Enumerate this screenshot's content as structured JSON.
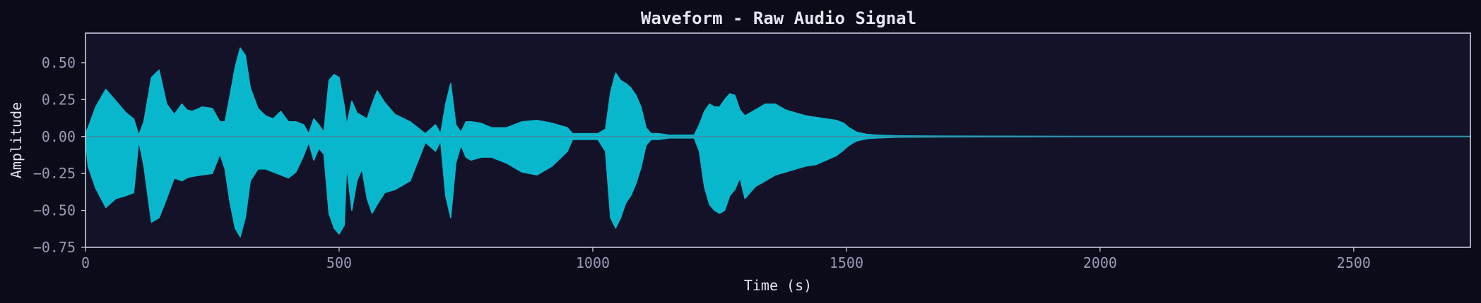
{
  "chart_data": {
    "type": "area",
    "title": "Waveform - Raw Audio Signal",
    "xlabel": "Time (s)",
    "ylabel": "Amplitude",
    "xlim": [
      0,
      2730
    ],
    "ylim": [
      -0.75,
      0.7
    ],
    "x_ticks": [
      0,
      500,
      1000,
      1500,
      2000,
      2500
    ],
    "y_ticks": [
      0.5,
      0.25,
      0.0,
      -0.25,
      -0.5,
      -0.75
    ],
    "x_tick_labels": [
      "0",
      "500",
      "1000",
      "1500",
      "2000",
      "2500"
    ],
    "y_tick_labels": [
      "0.50",
      "0.25",
      "0.00",
      "−0.25",
      "−0.50",
      "−0.75"
    ],
    "grid": false,
    "legend": "none",
    "series": [
      {
        "x": [
          0,
          5,
          20,
          40,
          60,
          80,
          95,
          105,
          115,
          130,
          145,
          160,
          175,
          190,
          200,
          210,
          230,
          250,
          265,
          275,
          285,
          295,
          305,
          315,
          325,
          340,
          355,
          370,
          385,
          400,
          415,
          430,
          440,
          450,
          460,
          470,
          480,
          490,
          500,
          510,
          515,
          525,
          535,
          545,
          555,
          565,
          575,
          590,
          610,
          640,
          670,
          690,
          700,
          710,
          720,
          730,
          740,
          750,
          760,
          780,
          800,
          830,
          860,
          890,
          920,
          950,
          960,
          970,
          990,
          1010,
          1025,
          1035,
          1045,
          1055,
          1065,
          1075,
          1085,
          1095,
          1105,
          1115,
          1120,
          1130,
          1150,
          1180,
          1200,
          1210,
          1220,
          1230,
          1240,
          1250,
          1260,
          1270,
          1280,
          1290,
          1300,
          1320,
          1340,
          1360,
          1380,
          1400,
          1420,
          1440,
          1460,
          1480,
          1495,
          1505,
          1520,
          1540,
          1560,
          1600,
          1700,
          1800,
          2000,
          2200,
          2400,
          2600,
          2730
        ],
        "upper": [
          0.02,
          0.06,
          0.2,
          0.32,
          0.24,
          0.16,
          0.12,
          0.01,
          0.1,
          0.4,
          0.45,
          0.22,
          0.15,
          0.22,
          0.18,
          0.17,
          0.2,
          0.19,
          0.1,
          0.1,
          0.28,
          0.47,
          0.6,
          0.55,
          0.33,
          0.19,
          0.14,
          0.12,
          0.17,
          0.1,
          0.1,
          0.08,
          0.02,
          0.12,
          0.08,
          0.03,
          0.38,
          0.42,
          0.4,
          0.21,
          0.08,
          0.24,
          0.16,
          0.14,
          0.12,
          0.22,
          0.31,
          0.23,
          0.15,
          0.1,
          0.02,
          0.08,
          0.02,
          0.22,
          0.36,
          0.08,
          0.03,
          0.1,
          0.1,
          0.09,
          0.06,
          0.06,
          0.1,
          0.11,
          0.09,
          0.06,
          0.02,
          0.02,
          0.02,
          0.02,
          0.05,
          0.3,
          0.43,
          0.38,
          0.36,
          0.33,
          0.28,
          0.2,
          0.06,
          0.02,
          0.02,
          0.02,
          0.01,
          0.01,
          0.01,
          0.08,
          0.17,
          0.22,
          0.2,
          0.2,
          0.25,
          0.29,
          0.28,
          0.18,
          0.14,
          0.18,
          0.22,
          0.22,
          0.18,
          0.16,
          0.14,
          0.13,
          0.12,
          0.11,
          0.09,
          0.06,
          0.03,
          0.015,
          0.01,
          0.005,
          0.003,
          0.002,
          0.001,
          0.001,
          0.001,
          0.001,
          0.001
        ],
        "lower": [
          -0.02,
          -0.2,
          -0.35,
          -0.48,
          -0.42,
          -0.4,
          -0.38,
          -0.03,
          -0.2,
          -0.58,
          -0.55,
          -0.42,
          -0.28,
          -0.3,
          -0.28,
          -0.27,
          -0.26,
          -0.25,
          -0.12,
          -0.22,
          -0.45,
          -0.62,
          -0.68,
          -0.55,
          -0.3,
          -0.22,
          -0.22,
          -0.24,
          -0.26,
          -0.28,
          -0.24,
          -0.13,
          -0.04,
          -0.16,
          -0.08,
          -0.12,
          -0.52,
          -0.62,
          -0.66,
          -0.6,
          -0.2,
          -0.5,
          -0.3,
          -0.22,
          -0.42,
          -0.52,
          -0.46,
          -0.38,
          -0.36,
          -0.3,
          -0.04,
          -0.1,
          -0.03,
          -0.4,
          -0.55,
          -0.18,
          -0.06,
          -0.14,
          -0.16,
          -0.14,
          -0.14,
          -0.18,
          -0.24,
          -0.26,
          -0.2,
          -0.1,
          -0.02,
          -0.02,
          -0.02,
          -0.02,
          -0.1,
          -0.55,
          -0.62,
          -0.55,
          -0.45,
          -0.4,
          -0.32,
          -0.21,
          -0.06,
          -0.02,
          -0.02,
          -0.02,
          -0.01,
          -0.01,
          -0.01,
          -0.1,
          -0.34,
          -0.46,
          -0.5,
          -0.52,
          -0.5,
          -0.4,
          -0.36,
          -0.28,
          -0.42,
          -0.34,
          -0.3,
          -0.26,
          -0.24,
          -0.22,
          -0.2,
          -0.19,
          -0.16,
          -0.13,
          -0.09,
          -0.06,
          -0.03,
          -0.015,
          -0.01,
          -0.005,
          -0.003,
          -0.002,
          -0.001,
          -0.001,
          -0.001,
          -0.001,
          -0.001
        ]
      }
    ],
    "colors": {
      "background": "#0b0b1a",
      "plot_area": "#131229",
      "waveform": "#09b7cc",
      "zero_line": "#3a8fa8",
      "frame": "#d8d8e8"
    }
  }
}
